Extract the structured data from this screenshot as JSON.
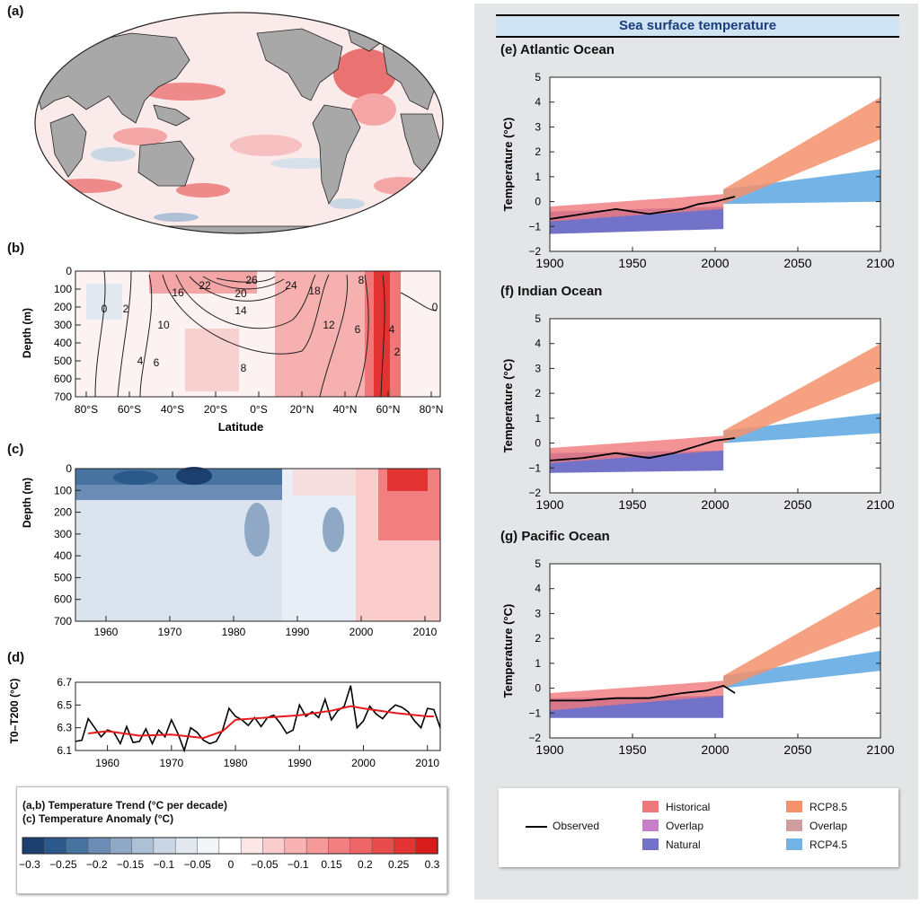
{
  "panel_labels": {
    "a": "(a)",
    "b": "(b)",
    "c": "(c)",
    "d": "(d)"
  },
  "colors": {
    "historical": "#f0787c",
    "overlap_hist": "#c77fc9",
    "natural": "#7272c9",
    "rcp85": "#f4926c",
    "overlap_rcp": "#cf9f9f",
    "rcp45": "#73b3e6",
    "observed": "#000000",
    "smooth_line": "#e41a1c",
    "land": "#a8a8a8"
  },
  "chart_b": {
    "ylabel": "Depth (m)",
    "xlabel": "Latitude",
    "yticks": [
      "0",
      "100",
      "200",
      "300",
      "400",
      "500",
      "600",
      "700"
    ],
    "xticks": [
      "80°S",
      "60°S",
      "40°S",
      "20°S",
      "0°S",
      "20°N",
      "40°N",
      "60°N",
      "80°N"
    ],
    "contour_labels": [
      "26",
      "22",
      "20",
      "24",
      "18",
      "16",
      "14",
      "12",
      "10",
      "8",
      "6",
      "4",
      "2",
      "0",
      "8",
      "6",
      "4",
      "2",
      "0"
    ]
  },
  "chart_c": {
    "ylabel": "Depth (m)",
    "yticks": [
      "0",
      "100",
      "200",
      "300",
      "400",
      "500",
      "600",
      "700"
    ],
    "xticks": [
      "1960",
      "1970",
      "1980",
      "1990",
      "2000",
      "2010"
    ]
  },
  "chart_data": [
    {
      "type": "line",
      "panel": "(d)",
      "ylabel": "T0–T200 (°C)",
      "yticks": [
        "6.1",
        "6.3",
        "6.5",
        "6.7"
      ],
      "xticks": [
        "1960",
        "1970",
        "1980",
        "1990",
        "2000",
        "2010"
      ],
      "ylim": [
        6.1,
        6.7
      ],
      "xlim": [
        1955,
        2012
      ],
      "series": [
        {
          "color": "#000000",
          "x": [
            1955,
            1956,
            1957,
            1958,
            1959,
            1960,
            1961,
            1962,
            1963,
            1964,
            1965,
            1966,
            1967,
            1968,
            1969,
            1970,
            1971,
            1972,
            1973,
            1974,
            1975,
            1976,
            1977,
            1978,
            1979,
            1980,
            1981,
            1982,
            1983,
            1984,
            1985,
            1986,
            1987,
            1988,
            1989,
            1990,
            1991,
            1992,
            1993,
            1994,
            1995,
            1996,
            1997,
            1998,
            1999,
            2000,
            2001,
            2002,
            2003,
            2004,
            2005,
            2006,
            2007,
            2008,
            2009,
            2010,
            2011,
            2012
          ],
          "y": [
            6.18,
            6.19,
            6.38,
            6.3,
            6.22,
            6.28,
            6.26,
            6.16,
            6.31,
            6.17,
            6.18,
            6.29,
            6.16,
            6.28,
            6.22,
            6.37,
            6.25,
            6.1,
            6.3,
            6.26,
            6.19,
            6.16,
            6.18,
            6.28,
            6.47,
            6.4,
            6.37,
            6.32,
            6.39,
            6.31,
            6.39,
            6.41,
            6.34,
            6.25,
            6.28,
            6.5,
            6.4,
            6.44,
            6.39,
            6.55,
            6.37,
            6.45,
            6.49,
            6.67,
            6.3,
            6.36,
            6.49,
            6.42,
            6.38,
            6.45,
            6.5,
            6.48,
            6.44,
            6.36,
            6.3,
            6.47,
            6.46,
            6.3
          ]
        },
        {
          "color": "#e41a1c",
          "x": [
            1957,
            1960,
            1965,
            1970,
            1975,
            1978,
            1980,
            1985,
            1990,
            1995,
            1998,
            2000,
            2005,
            2010,
            2011
          ],
          "y": [
            6.25,
            6.27,
            6.23,
            6.24,
            6.21,
            6.27,
            6.37,
            6.39,
            6.41,
            6.45,
            6.49,
            6.47,
            6.43,
            6.4,
            6.4
          ]
        }
      ]
    },
    {
      "type": "area",
      "panel": "(e)",
      "title": "(e) Atlantic Ocean",
      "ylabel": "Temperature (°C)",
      "ylim": [
        -2,
        5
      ],
      "xlim": [
        1900,
        2100
      ],
      "yticks": [
        "5",
        "4",
        "3",
        "2",
        "1",
        "0",
        "−1",
        "−2"
      ],
      "xticks": [
        "1900",
        "1950",
        "2000",
        "2050",
        "2100"
      ],
      "bands": {
        "historical": {
          "x": [
            1900,
            2005
          ],
          "lower": [
            -0.8,
            -0.3
          ],
          "upper": [
            -0.2,
            0.3
          ]
        },
        "natural": {
          "x": [
            1900,
            2005
          ],
          "lower": [
            -1.3,
            -1.1
          ],
          "upper": [
            -0.4,
            -0.2
          ]
        },
        "rcp85": {
          "x": [
            2005,
            2100
          ],
          "lower": [
            -0.1,
            2.5
          ],
          "upper": [
            0.5,
            4.2
          ]
        },
        "rcp45": {
          "x": [
            2005,
            2100
          ],
          "lower": [
            -0.1,
            0.0
          ],
          "upper": [
            0.5,
            1.3
          ]
        }
      },
      "observed": {
        "x": [
          1900,
          1920,
          1940,
          1960,
          1980,
          1990,
          2000,
          2012
        ],
        "y": [
          -0.7,
          -0.5,
          -0.3,
          -0.5,
          -0.3,
          -0.1,
          0.0,
          0.2
        ]
      }
    },
    {
      "type": "area",
      "panel": "(f)",
      "title": "(f) Indian Ocean",
      "ylabel": "Temperature (°C)",
      "ylim": [
        -2,
        5
      ],
      "xlim": [
        1900,
        2100
      ],
      "yticks": [
        "5",
        "4",
        "3",
        "2",
        "1",
        "0",
        "−1",
        "−2"
      ],
      "xticks": [
        "1900",
        "1950",
        "2000",
        "2050",
        "2100"
      ],
      "bands": {
        "historical": {
          "x": [
            1900,
            2005
          ],
          "lower": [
            -0.8,
            -0.3
          ],
          "upper": [
            -0.2,
            0.3
          ]
        },
        "natural": {
          "x": [
            1900,
            2005
          ],
          "lower": [
            -1.2,
            -1.1
          ],
          "upper": [
            -0.4,
            -0.3
          ]
        },
        "rcp85": {
          "x": [
            2005,
            2100
          ],
          "lower": [
            0.0,
            2.5
          ],
          "upper": [
            0.5,
            4.0
          ]
        },
        "rcp45": {
          "x": [
            2005,
            2100
          ],
          "lower": [
            0.0,
            0.4
          ],
          "upper": [
            0.5,
            1.2
          ]
        }
      },
      "observed": {
        "x": [
          1900,
          1920,
          1940,
          1960,
          1975,
          1990,
          2000,
          2012
        ],
        "y": [
          -0.7,
          -0.6,
          -0.4,
          -0.6,
          -0.4,
          -0.1,
          0.1,
          0.2
        ]
      }
    },
    {
      "type": "area",
      "panel": "(g)",
      "title": "(g) Pacific Ocean",
      "ylabel": "Temperature (°C)",
      "ylim": [
        -2,
        5
      ],
      "xlim": [
        1900,
        2100
      ],
      "yticks": [
        "5",
        "4",
        "3",
        "2",
        "1",
        "0",
        "−1",
        "−2"
      ],
      "xticks": [
        "1900",
        "1950",
        "2000",
        "2050",
        "2100"
      ],
      "bands": {
        "historical": {
          "x": [
            1900,
            2005
          ],
          "lower": [
            -0.9,
            -0.3
          ],
          "upper": [
            -0.2,
            0.3
          ]
        },
        "natural": {
          "x": [
            1900,
            2005
          ],
          "lower": [
            -1.2,
            -1.2
          ],
          "upper": [
            -0.4,
            -0.3
          ]
        },
        "rcp85": {
          "x": [
            2005,
            2100
          ],
          "lower": [
            0.0,
            2.5
          ],
          "upper": [
            0.5,
            4.1
          ]
        },
        "rcp45": {
          "x": [
            2005,
            2100
          ],
          "lower": [
            0.0,
            0.7
          ],
          "upper": [
            0.5,
            1.5
          ]
        }
      },
      "observed": {
        "x": [
          1900,
          1920,
          1940,
          1960,
          1980,
          1995,
          2005,
          2012
        ],
        "y": [
          -0.5,
          -0.5,
          -0.4,
          -0.4,
          -0.2,
          -0.1,
          0.1,
          -0.2
        ]
      }
    }
  ],
  "right_panel": {
    "title": "Sea surface temperature"
  },
  "legend_right": {
    "observed": "Observed",
    "historical": "Historical",
    "overlap1": "Overlap",
    "natural": "Natural",
    "rcp85": "RCP8.5",
    "overlap2": "Overlap",
    "rcp45": "RCP4.5"
  },
  "legend_left": {
    "line1": "(a,b) Temperature Trend (°C per decade)",
    "line2": "(c) Temperature Anomaly (°C)",
    "ticks": [
      "−0.3",
      "−0.25",
      "−0.2",
      "−0.15",
      "−0.1",
      "−0.05",
      "0",
      "−0.05",
      "−0.1",
      "0.15",
      "0.2",
      "0.25",
      "0.3"
    ],
    "colors": [
      "#1b3f6e",
      "#2b5a8a",
      "#4673a0",
      "#6b8db5",
      "#8ea8c6",
      "#adc0d6",
      "#c9d6e4",
      "#e1e8f0",
      "#f3f6f9",
      "#ffffff",
      "#fde6e6",
      "#fbcccc",
      "#f9b3b3",
      "#f69999",
      "#f27f7f",
      "#ee6666",
      "#e94c4c",
      "#e43333",
      "#d81b1b"
    ]
  }
}
